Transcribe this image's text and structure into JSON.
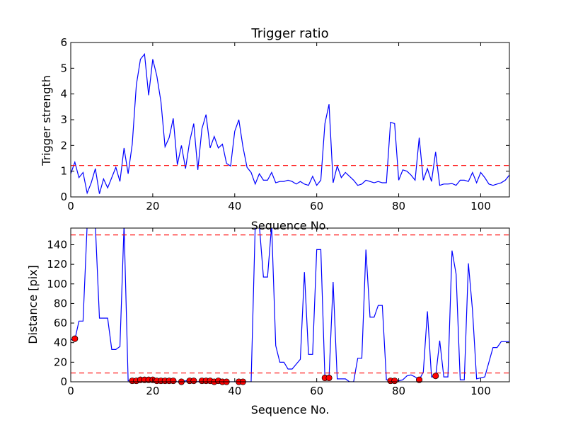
{
  "chart_data": [
    {
      "type": "line",
      "title": "Trigger ratio",
      "xlabel": "Sequence No.",
      "ylabel": "Trigger strength",
      "xlim": [
        0,
        107
      ],
      "ylim": [
        0,
        6
      ],
      "xticks": [
        0,
        20,
        40,
        60,
        80,
        100
      ],
      "yticks": [
        0,
        1,
        2,
        3,
        4,
        5,
        6
      ],
      "series": [
        {
          "color": "#0000ff",
          "x": [
            0,
            1,
            2,
            3,
            4,
            5,
            6,
            7,
            8,
            9,
            10,
            11,
            12,
            13,
            14,
            15,
            16,
            17,
            18,
            19,
            20,
            21,
            22,
            23,
            24,
            25,
            26,
            27,
            28,
            29,
            30,
            31,
            32,
            33,
            34,
            35,
            36,
            37,
            38,
            39,
            40,
            41,
            42,
            43,
            44,
            45,
            46,
            47,
            48,
            49,
            50,
            51,
            52,
            53,
            54,
            55,
            56,
            57,
            58,
            59,
            60,
            61,
            62,
            63,
            64,
            65,
            66,
            67,
            68,
            69,
            70,
            71,
            72,
            73,
            74,
            75,
            76,
            77,
            78,
            79,
            80,
            81,
            82,
            83,
            84,
            85,
            86,
            87,
            88,
            89,
            90,
            91,
            92,
            93,
            94,
            95,
            96,
            97,
            98,
            99,
            100,
            101,
            102,
            103,
            104,
            105,
            106,
            107
          ],
          "y": [
            0.9,
            1.35,
            0.75,
            0.95,
            0.15,
            0.55,
            1.1,
            0.12,
            0.7,
            0.35,
            0.75,
            1.15,
            0.6,
            1.9,
            0.9,
            2.05,
            4.35,
            5.35,
            5.55,
            3.95,
            5.35,
            4.7,
            3.7,
            1.95,
            2.3,
            3.05,
            1.25,
            2.0,
            1.1,
            2.15,
            2.85,
            1.05,
            2.65,
            3.2,
            1.9,
            2.35,
            1.9,
            2.05,
            1.3,
            1.2,
            2.55,
            3.0,
            1.95,
            1.15,
            0.95,
            0.5,
            0.9,
            0.65,
            0.65,
            0.95,
            0.55,
            0.6,
            0.6,
            0.65,
            0.6,
            0.5,
            0.6,
            0.5,
            0.45,
            0.8,
            0.45,
            0.65,
            2.85,
            3.6,
            0.55,
            1.2,
            0.75,
            0.95,
            0.8,
            0.65,
            0.45,
            0.5,
            0.65,
            0.6,
            0.55,
            0.6,
            0.55,
            0.55,
            2.9,
            2.85,
            0.65,
            1.05,
            1.0,
            0.85,
            0.65,
            2.3,
            0.65,
            1.1,
            0.6,
            1.75,
            0.45,
            0.5,
            0.5,
            0.52,
            0.45,
            0.65,
            0.65,
            0.6,
            0.95,
            0.55,
            0.95,
            0.75,
            0.5,
            0.45,
            0.5,
            0.55,
            0.65,
            0.85
          ]
        }
      ],
      "hlines": [
        {
          "y": 1.22,
          "color": "#ff0000",
          "style": "dashed"
        }
      ]
    },
    {
      "type": "line",
      "title": "",
      "xlabel": "Sequence No.",
      "ylabel": "Distance [pix]",
      "xlim": [
        0,
        107
      ],
      "ylim": [
        0,
        157
      ],
      "xticks": [
        0,
        20,
        40,
        60,
        80,
        100
      ],
      "yticks": [
        0,
        20,
        40,
        60,
        80,
        100,
        120,
        140
      ],
      "series": [
        {
          "color": "#0000ff",
          "x": [
            0,
            1,
            2,
            3,
            4,
            5,
            6,
            7,
            8,
            9,
            10,
            11,
            12,
            13,
            14,
            15,
            16,
            17,
            18,
            19,
            20,
            21,
            22,
            23,
            24,
            25,
            26,
            27,
            28,
            29,
            30,
            31,
            32,
            33,
            34,
            35,
            36,
            37,
            38,
            39,
            40,
            41,
            42,
            43,
            44,
            45,
            46,
            47,
            48,
            49,
            50,
            51,
            52,
            53,
            54,
            55,
            56,
            57,
            58,
            59,
            60,
            61,
            62,
            63,
            64,
            65,
            66,
            67,
            68,
            69,
            70,
            71,
            72,
            73,
            74,
            75,
            76,
            77,
            78,
            79,
            80,
            81,
            82,
            83,
            84,
            85,
            86,
            87,
            88,
            89,
            90,
            91,
            92,
            93,
            94,
            95,
            96,
            97,
            98,
            99,
            100,
            101,
            102,
            103,
            104,
            105,
            106,
            107
          ],
          "y": [
            43,
            43,
            62,
            62,
            160,
            160,
            160,
            65,
            65,
            65,
            33,
            33,
            36,
            160,
            1,
            1,
            2,
            2,
            2,
            2,
            2,
            1,
            1,
            1,
            1,
            1,
            0,
            0,
            1,
            1,
            1,
            0,
            1,
            1,
            1,
            0,
            0,
            0,
            0,
            0,
            0,
            0,
            0,
            0,
            0,
            160,
            160,
            107,
            107,
            160,
            37,
            20,
            20,
            13,
            13,
            18,
            23,
            112,
            28,
            28,
            135,
            135,
            4,
            4,
            102,
            3,
            3,
            3,
            0,
            0,
            24,
            24,
            135,
            66,
            66,
            78,
            78,
            2,
            2,
            2,
            1,
            2,
            6,
            7,
            5,
            2,
            10,
            72,
            5,
            5,
            42,
            5,
            5,
            134,
            110,
            2,
            2,
            121,
            73,
            3,
            4,
            5,
            20,
            35,
            35,
            41,
            41,
            41
          ]
        }
      ],
      "markers": {
        "color": "#ff0000",
        "x": [
          1,
          15,
          16,
          17,
          18,
          19,
          20,
          21,
          22,
          23,
          24,
          25,
          27,
          29,
          30,
          32,
          33,
          34,
          35,
          36,
          37,
          38,
          41,
          42,
          62,
          63,
          78,
          79,
          85,
          89
        ],
        "y": [
          44,
          1,
          1,
          2,
          2,
          2,
          2,
          1,
          1,
          1,
          1,
          1,
          0,
          1,
          1,
          1,
          1,
          1,
          0,
          1,
          0,
          0,
          0,
          0,
          4,
          4,
          1,
          1,
          2,
          6
        ]
      },
      "hlines": [
        {
          "y": 150,
          "color": "#ff0000",
          "style": "dashed"
        },
        {
          "y": 9,
          "color": "#ff0000",
          "style": "dashed"
        }
      ]
    }
  ]
}
